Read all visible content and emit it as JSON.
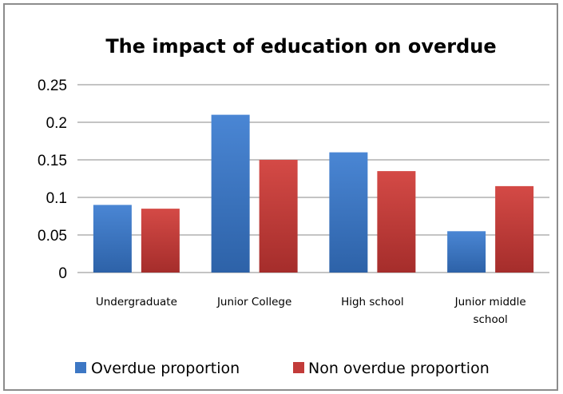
{
  "chart_data": {
    "type": "bar",
    "title": "The impact of education on overdue",
    "categories": [
      [
        "Undergraduate"
      ],
      [
        "Junior College"
      ],
      [
        "High school"
      ],
      [
        "Junior middle",
        "school"
      ]
    ],
    "series": [
      {
        "name": "Overdue proportion",
        "values": [
          0.09,
          0.21,
          0.16,
          0.055
        ],
        "color": "#3d77c4"
      },
      {
        "name": "Non overdue proportion",
        "values": [
          0.085,
          0.15,
          0.135,
          0.115
        ],
        "color": "#c23b39"
      }
    ],
    "ylim": [
      0,
      0.25
    ],
    "yticks": [
      "0",
      "0.05",
      "0.1",
      "0.15",
      "0.2",
      "0.25"
    ],
    "grid": true,
    "legend_position": "bottom"
  }
}
